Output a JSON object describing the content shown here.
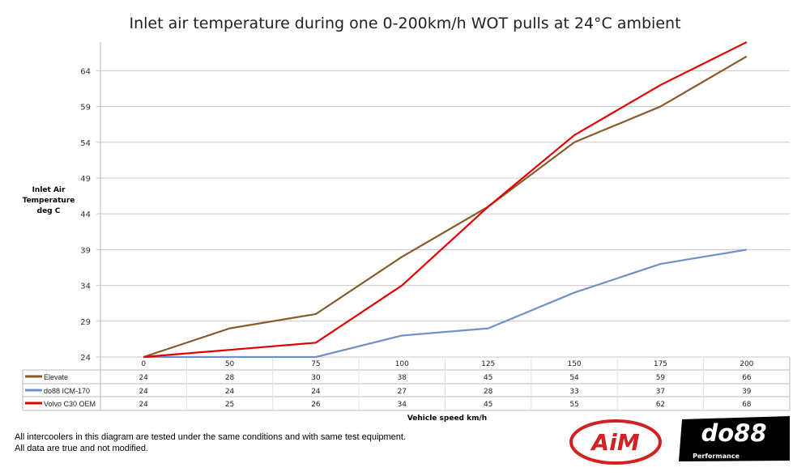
{
  "chart_data": {
    "type": "line",
    "title": "Inlet air temperature during one 0-200km/h WOT pulls at 24°C ambient",
    "xlabel": "Vehicle speed km/h",
    "ylabel": [
      "Inlet Air",
      "Temperature",
      "deg C"
    ],
    "categories": [
      "0",
      "50",
      "75",
      "100",
      "125",
      "150",
      "175",
      "200"
    ],
    "yticks": [
      24,
      29,
      34,
      39,
      44,
      49,
      54,
      59,
      64
    ],
    "ylim": [
      24,
      68
    ],
    "grid": true,
    "legend": "data-table",
    "series": [
      {
        "name": "Elevate",
        "color": "#8B5A2B",
        "values": [
          24,
          28,
          30,
          38,
          45,
          54,
          59,
          66
        ]
      },
      {
        "name": "do88 ICM-170",
        "color": "#7090C8",
        "values": [
          24,
          24,
          24,
          27,
          28,
          33,
          37,
          39
        ]
      },
      {
        "name": "Volvo C30 OEM",
        "color": "#E00000",
        "values": [
          24,
          25,
          26,
          34,
          45,
          55,
          62,
          68
        ]
      }
    ]
  },
  "notes": [
    "All intercoolers in this diagram are tested under the same conditions and with same test equipment.",
    "All data are true and not modified."
  ],
  "logos": {
    "aim": "AiM",
    "do88": "do88",
    "do88_sub": "Performance"
  }
}
